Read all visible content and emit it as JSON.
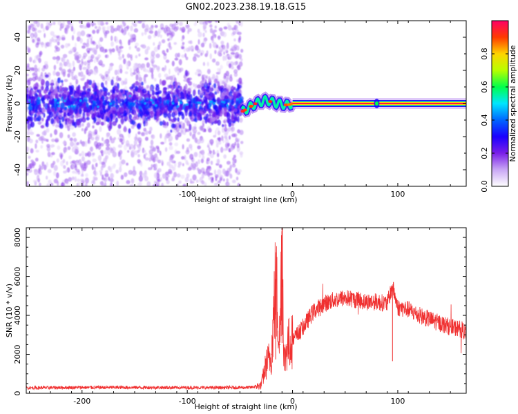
{
  "figure": {
    "title": "GN02.2023.238.19.18.G15"
  },
  "chart_data": [
    {
      "type": "heatmap",
      "title": "GN02.2023.238.19.18.G15",
      "xlabel": "Height of straight line (km)",
      "ylabel": "Frequency (Hz)",
      "xlim": [
        -253,
        165
      ],
      "ylim": [
        -50,
        50
      ],
      "x_ticks": [
        -200,
        -100,
        0,
        100
      ],
      "y_ticks": [
        -40,
        -20,
        0,
        20,
        40
      ],
      "grid": false,
      "colorbar": {
        "label": "Normalized spectral amplitude",
        "range": [
          0,
          1
        ],
        "ticks": [
          0.0,
          0.2,
          0.4,
          0.6,
          0.8
        ],
        "colors": [
          "#ffffff",
          "#c9a7f5",
          "#7a1fe8",
          "#1b00ff",
          "#0066ff",
          "#00e6ff",
          "#00ff4c",
          "#b8ff00",
          "#ffd400",
          "#ff3b00",
          "#ff0066"
        ]
      },
      "regions": [
        {
          "x_range": [
            -253,
            -48
          ],
          "description": "broadband scatter",
          "freq_spread": [
            -50,
            50
          ],
          "dense_band": [
            -12,
            12
          ],
          "mean_amplitude": 0.25
        },
        {
          "x_range": [
            -48,
            0
          ],
          "description": "transition",
          "freq_center": [
            [
              -48,
              -5
            ],
            [
              -35,
              0
            ],
            [
              -25,
              2
            ],
            [
              -15,
              0
            ],
            [
              -5,
              -1
            ],
            [
              0,
              0
            ]
          ],
          "peak_amplitude": 0.9
        },
        {
          "x_range": [
            0,
            165
          ],
          "description": "narrow line at 0 Hz",
          "freq_center": 0,
          "peak_amplitude": 1.0,
          "blip_x": [
            80
          ]
        }
      ]
    },
    {
      "type": "line",
      "xlabel": "Height of straight line (km)",
      "ylabel": "SNR (10 * v/v)",
      "xlim": [
        -253,
        165
      ],
      "ylim": [
        0,
        8500
      ],
      "x_ticks": [
        -200,
        -100,
        0,
        100
      ],
      "y_ticks": [
        0,
        2000,
        4000,
        6000,
        8000
      ],
      "grid": false,
      "series": [
        {
          "color": "#f03030",
          "x": [
            -253,
            -200,
            -150,
            -100,
            -60,
            -40,
            -30,
            -25,
            -20,
            -16,
            -12,
            -10,
            -8,
            -5,
            0,
            10,
            20,
            30,
            40,
            50,
            60,
            70,
            80,
            90,
            95,
            100,
            110,
            120,
            130,
            140,
            150,
            160,
            165
          ],
          "y": [
            280,
            300,
            300,
            290,
            290,
            300,
            400,
            1500,
            2000,
            5800,
            2500,
            8600,
            1500,
            2500,
            2700,
            3400,
            4200,
            4600,
            4800,
            4900,
            4800,
            4700,
            4700,
            4600,
            5500,
            4400,
            4300,
            4000,
            3800,
            3600,
            3400,
            3300,
            3100
          ]
        }
      ]
    }
  ]
}
